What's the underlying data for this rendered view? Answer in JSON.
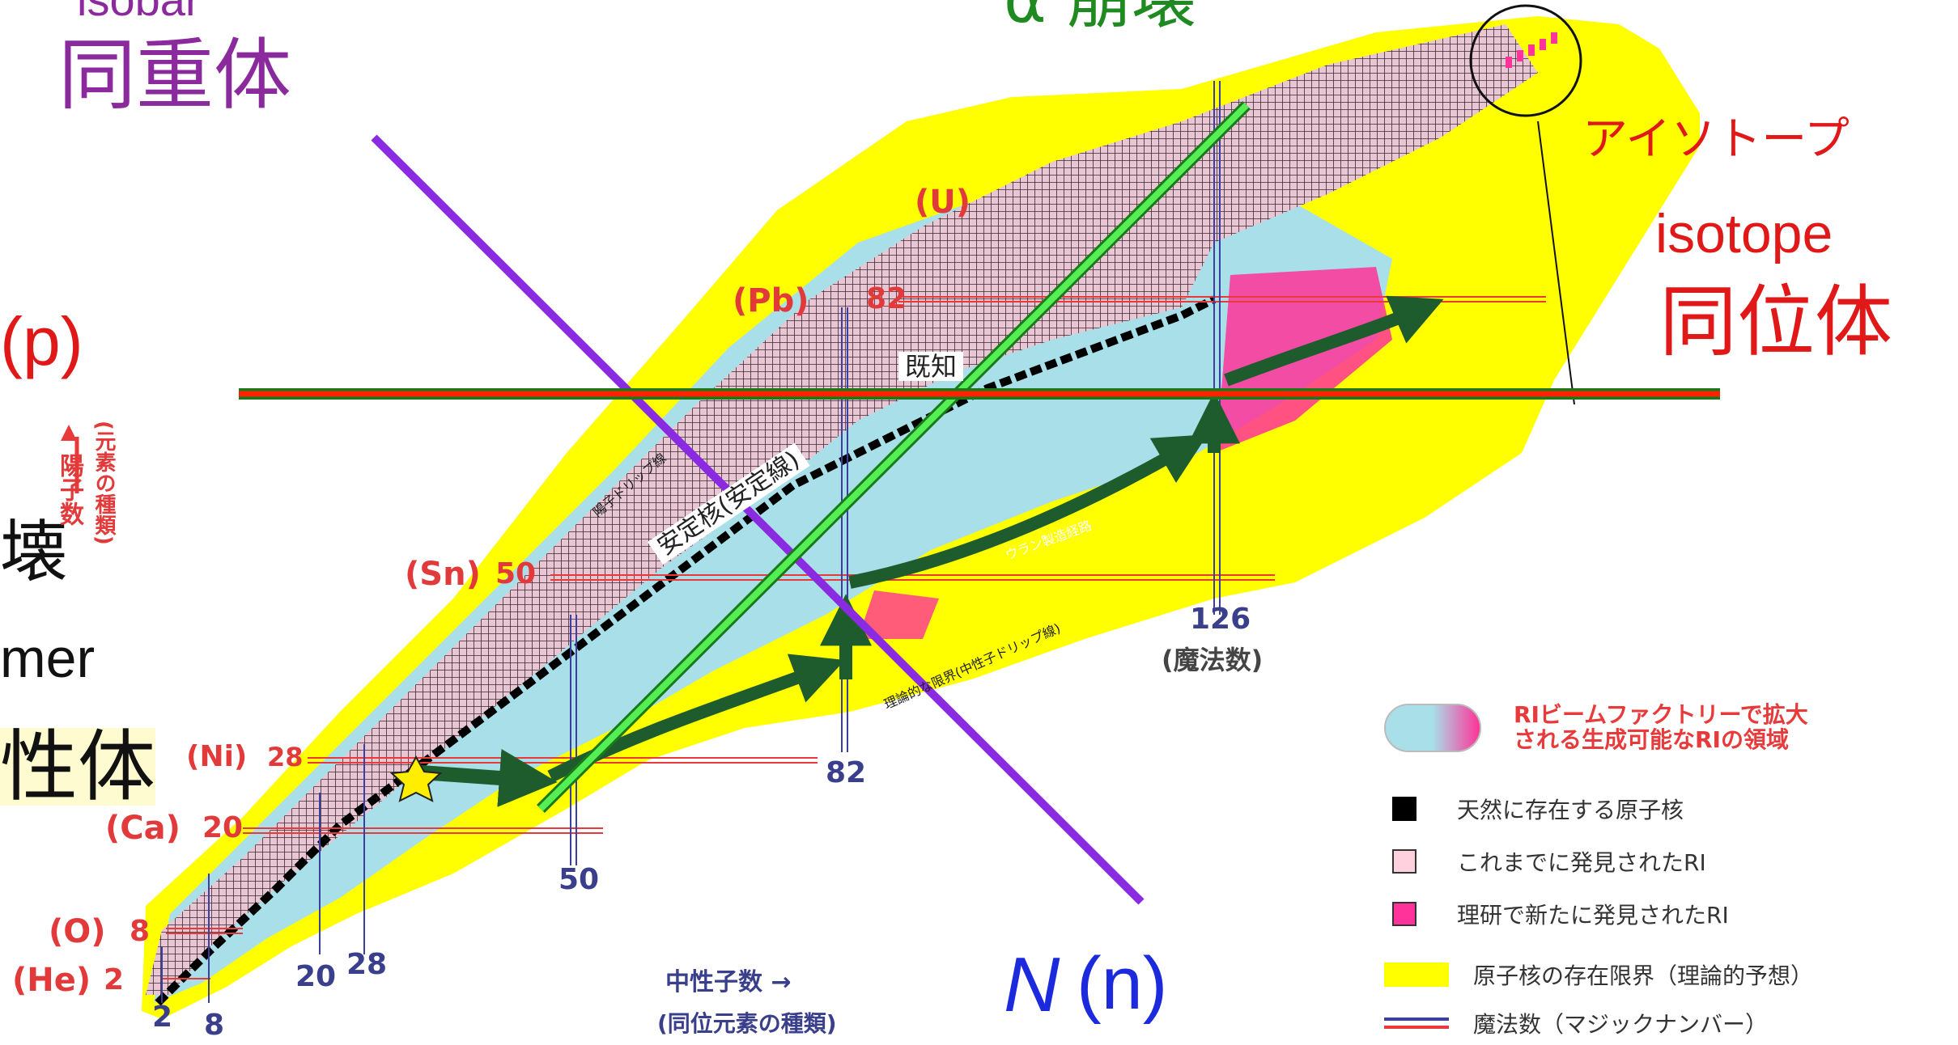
{
  "top_labels": {
    "isobar_en": "isobar",
    "isobar_jp": "同重体",
    "alpha": "α 崩壊",
    "isotope_kana": "アイソトープ",
    "isotope_en": "isotope",
    "isotope_jp": "同位体",
    "proton_p": "(p)",
    "decay_fragment": "壊",
    "isomer_en": "mer",
    "isomer_jp": "性体",
    "neutron_N": "N",
    "neutron_n": "(n)"
  },
  "chart_labels": {
    "elements": [
      "(U)",
      "(Pb)",
      "(Sn)",
      "(Ni)",
      "(Ca)",
      "(O)",
      "(He)"
    ],
    "proton_magic": [
      "82",
      "50",
      "28",
      "20",
      "8",
      "2"
    ],
    "neutron_magic": [
      "2",
      "8",
      "20",
      "28",
      "50",
      "82",
      "126"
    ],
    "magic_note": "(魔法数)",
    "known": "既知",
    "stability_line": "安定核(安定線)",
    "proton_dripline": "陽子ドリップ線",
    "neutron_dripline": "理論的な限界(中性子ドリップ線)",
    "r_process": "ウラン製造経路",
    "y_axis": "陽子数",
    "y_axis_sub": "(元素の種類)",
    "x_axis": "中性子数 →",
    "x_axis_sub": "(同位元素の種類)"
  },
  "legend": {
    "items": [
      {
        "text": "RIビームファクトリーで拡大\nされる生成可能なRIの領域",
        "swatch": "ri-region"
      },
      {
        "text": "天然に存在する原子核",
        "swatch": "black"
      },
      {
        "text": "これまでに発見されたRI",
        "swatch": "pink-light"
      },
      {
        "text": "理研で新たに発見されたRI",
        "swatch": "magenta"
      },
      {
        "text": "原子核の存在限界（理論的予想）",
        "swatch": "yellow"
      },
      {
        "text": "魔法数（マジックナンバー）",
        "swatch": "magic-lines"
      }
    ]
  },
  "colors": {
    "isobar_line": "#8a2be2",
    "alpha_line": "#33cc33",
    "isotope_line_green": "#1a7a1a",
    "isotope_line_red": "#ff2200",
    "yellow": "#ffff00",
    "magenta": "#ff3399",
    "light_blue": "#a8dfe8",
    "arrow": "#1e5c2e"
  }
}
